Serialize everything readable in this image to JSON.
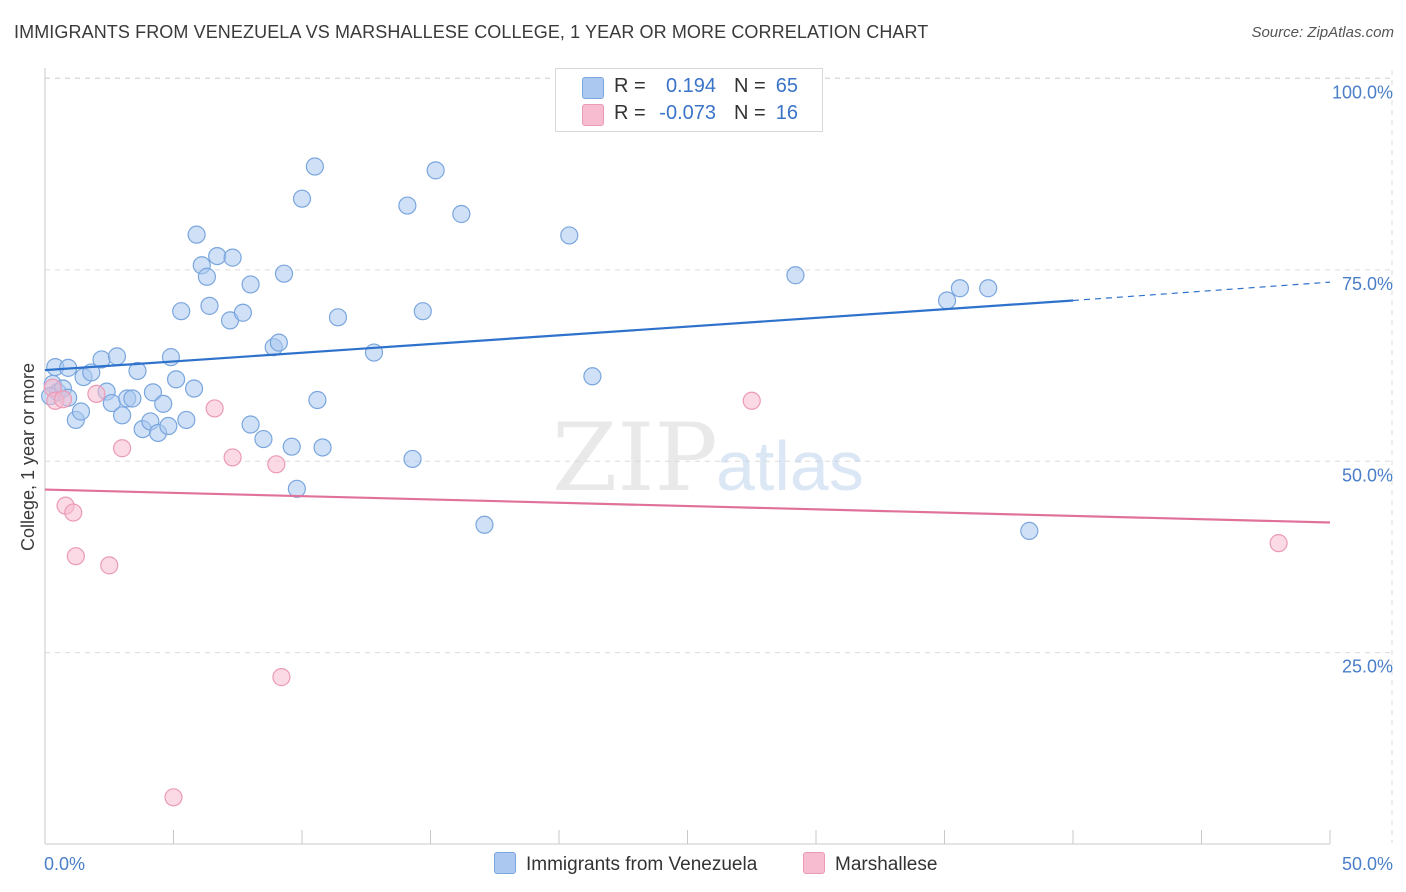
{
  "header": {
    "title": "IMMIGRANTS FROM VENEZUELA VS MARSHALLESE COLLEGE, 1 YEAR OR MORE CORRELATION CHART",
    "source": "Source: ZipAtlas.com"
  },
  "legend": {
    "rows": [
      {
        "r_label": "R =",
        "r_value": "0.194",
        "n_label": "N =",
        "n_value": "65",
        "color": "#aac8f0"
      },
      {
        "r_label": "R =",
        "r_value": "-0.073",
        "n_label": "N =",
        "n_value": "16",
        "color": "#f7bcd0"
      }
    ],
    "bottom": [
      "Immigrants from Venezuela",
      "Marshallese"
    ]
  },
  "watermark": {
    "zip": "ZIP",
    "atlas": "atlas"
  },
  "colors": {
    "blue_fill": "#aac8f0",
    "blue_stroke": "#7aa6de",
    "blue_line": "#2f72cc",
    "pink_fill": "#f7bcd0",
    "pink_stroke": "#eb9ab6",
    "pink_line": "#e0719a",
    "tick_text": "#4a7fc8",
    "grid": "#dcdcdc"
  },
  "chart_data": {
    "type": "scatter",
    "title": "IMMIGRANTS FROM VENEZUELA VS MARSHALLESE COLLEGE, 1 YEAR OR MORE CORRELATION CHART",
    "xlabel": "",
    "ylabel": "College, 1 year or more",
    "xlim": [
      0,
      50
    ],
    "ylim": [
      0,
      105
    ],
    "x_tick_labels": [
      "0.0%",
      "50.0%"
    ],
    "y_tick_values": [
      25,
      50,
      75,
      100
    ],
    "y_tick_labels": [
      "25.0%",
      "50.0%",
      "75.0%",
      "100.0%"
    ],
    "grid": true,
    "series": [
      {
        "name": "Immigrants from Venezuela",
        "points": [
          [
            0.4,
            62.3
          ],
          [
            0.3,
            60.1
          ],
          [
            0.5,
            59.0
          ],
          [
            0.7,
            59.5
          ],
          [
            0.9,
            58.3
          ],
          [
            0.9,
            62.2
          ],
          [
            1.2,
            55.4
          ],
          [
            1.4,
            56.5
          ],
          [
            1.5,
            61.0
          ],
          [
            1.8,
            61.6
          ],
          [
            2.2,
            63.3
          ],
          [
            2.4,
            59.1
          ],
          [
            2.6,
            57.6
          ],
          [
            2.8,
            63.7
          ],
          [
            3.0,
            56.0
          ],
          [
            3.2,
            58.2
          ],
          [
            3.4,
            58.2
          ],
          [
            3.6,
            61.8
          ],
          [
            3.8,
            54.2
          ],
          [
            4.1,
            55.2
          ],
          [
            4.2,
            59.0
          ],
          [
            4.4,
            53.7
          ],
          [
            4.6,
            57.5
          ],
          [
            4.8,
            54.6
          ],
          [
            4.9,
            63.6
          ],
          [
            5.1,
            60.7
          ],
          [
            5.3,
            69.6
          ],
          [
            5.5,
            55.4
          ],
          [
            5.8,
            59.5
          ],
          [
            5.9,
            79.6
          ],
          [
            6.1,
            75.6
          ],
          [
            6.3,
            74.1
          ],
          [
            6.4,
            70.3
          ],
          [
            6.7,
            76.8
          ],
          [
            7.2,
            68.4
          ],
          [
            7.3,
            76.6
          ],
          [
            7.7,
            69.4
          ],
          [
            8.0,
            73.1
          ],
          [
            8.0,
            54.8
          ],
          [
            8.5,
            52.9
          ],
          [
            8.9,
            64.9
          ],
          [
            9.1,
            65.5
          ],
          [
            9.3,
            74.5
          ],
          [
            9.6,
            51.9
          ],
          [
            9.8,
            46.4
          ],
          [
            10.0,
            84.3
          ],
          [
            10.5,
            88.5
          ],
          [
            10.6,
            58.0
          ],
          [
            10.8,
            51.8
          ],
          [
            11.4,
            68.8
          ],
          [
            12.8,
            64.2
          ],
          [
            14.1,
            83.4
          ],
          [
            14.3,
            50.3
          ],
          [
            14.7,
            69.6
          ],
          [
            15.2,
            88.0
          ],
          [
            16.2,
            82.3
          ],
          [
            17.1,
            41.7
          ],
          [
            20.4,
            79.5
          ],
          [
            21.3,
            61.1
          ],
          [
            29.2,
            74.3
          ],
          [
            35.1,
            71.0
          ],
          [
            35.6,
            72.6
          ],
          [
            36.7,
            72.6
          ],
          [
            38.3,
            40.9
          ],
          [
            0.2,
            58.5
          ]
        ],
        "trend": {
          "x": [
            0,
            40
          ],
          "y": [
            61.9,
            71.0
          ],
          "dashed_extension_to_x": 50,
          "dashed_extension_y": 73.4
        }
      },
      {
        "name": "Marshallese",
        "points": [
          [
            0.3,
            59.6
          ],
          [
            0.4,
            57.9
          ],
          [
            0.7,
            58.1
          ],
          [
            0.8,
            44.2
          ],
          [
            1.1,
            43.3
          ],
          [
            1.2,
            37.6
          ],
          [
            2.0,
            58.8
          ],
          [
            2.5,
            36.4
          ],
          [
            3.0,
            51.7
          ],
          [
            5.0,
            6.1
          ],
          [
            6.6,
            56.9
          ],
          [
            7.3,
            50.5
          ],
          [
            9.0,
            49.6
          ],
          [
            9.2,
            21.8
          ],
          [
            27.5,
            57.9
          ],
          [
            48.0,
            39.3
          ]
        ],
        "trend": {
          "x": [
            0,
            50
          ],
          "y": [
            46.3,
            42.0
          ]
        }
      }
    ]
  }
}
